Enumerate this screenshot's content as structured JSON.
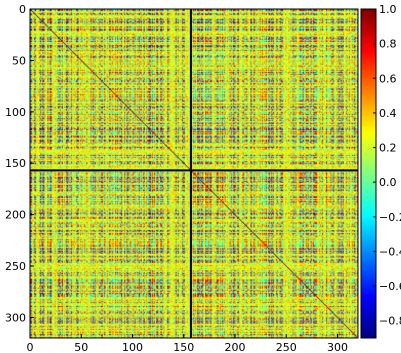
{
  "chart_data": {
    "type": "heatmap",
    "title": "",
    "xlabel": "",
    "ylabel": "",
    "matrix_size": 320,
    "xlim": [
      0,
      320
    ],
    "ylim": [
      320,
      0
    ],
    "x_ticks": [
      0,
      50,
      100,
      150,
      200,
      250,
      300
    ],
    "y_ticks": [
      0,
      50,
      100,
      150,
      200,
      250,
      300
    ],
    "x_tick_labels": [
      "0",
      "50",
      "100",
      "150",
      "200",
      "250",
      "300"
    ],
    "y_tick_labels": [
      "0",
      "50",
      "100",
      "150",
      "200",
      "250",
      "300"
    ],
    "block_boundary": 157,
    "diagonal_value": 1.0,
    "value_range": [
      -0.9,
      1.0
    ],
    "colormap": "jet",
    "colorbar": {
      "ticks": [
        1.0,
        0.8,
        0.6,
        0.4,
        0.2,
        0.0,
        -0.2,
        -0.4,
        -0.6,
        -0.8
      ],
      "tick_labels": [
        "1.0",
        "0.8",
        "0.6",
        "0.4",
        "0.2",
        "0.0",
        "−0.2",
        "−0.4",
        "−0.6",
        "−0.8"
      ],
      "vmin": -0.9,
      "vmax": 1.0
    },
    "grid": false
  },
  "colors": {
    "separator_line": "#000000",
    "frame": "#000000"
  }
}
